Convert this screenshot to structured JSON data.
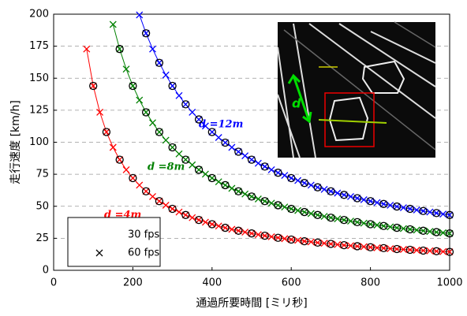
{
  "chart_data": {
    "type": "scatter",
    "xlabel": "通過所要時間 [ミリ秒]",
    "ylabel": "走行速度 [km/h]",
    "xlim": [
      0,
      1000
    ],
    "xticks": [
      0,
      200,
      400,
      600,
      800,
      1000
    ],
    "ylim": [
      0,
      200
    ],
    "yticks": [
      0,
      25,
      50,
      75,
      100,
      125,
      150,
      175,
      200
    ],
    "grid": true,
    "legend": [
      {
        "label": "30 fps",
        "marker": "circle"
      },
      {
        "label": "60 fps",
        "marker": "x"
      }
    ],
    "series": [
      {
        "label": "d =4m",
        "color": "#ff0000",
        "marker": "x",
        "x": [
          83.3,
          100,
          116.7,
          133.3,
          150,
          166.7,
          183.3,
          200,
          216.7,
          233.3,
          250,
          266.7,
          283.3,
          300,
          316.7,
          333.3,
          350,
          366.7,
          383.3,
          400,
          416.7,
          433.3,
          450,
          466.7,
          483.3,
          500,
          516.7,
          533.3,
          550,
          566.7,
          583.3,
          600,
          616.7,
          633.3,
          650,
          666.7,
          683.3,
          700,
          716.7,
          733.3,
          750,
          766.7,
          783.3,
          800,
          816.7,
          833.3,
          850,
          866.7,
          883.3,
          900,
          916.7,
          933.3,
          950,
          966.7,
          983.3,
          1000
        ],
        "values": [
          172.8,
          144,
          123.4,
          108,
          96,
          86.4,
          78.5,
          72,
          66.5,
          61.7,
          57.6,
          54,
          50.8,
          48,
          45.5,
          43.2,
          41.1,
          39.3,
          37.6,
          36,
          34.6,
          33.2,
          32,
          30.9,
          29.8,
          28.8,
          27.9,
          27,
          26.2,
          25.4,
          24.7,
          24,
          23.4,
          22.7,
          22.2,
          21.6,
          21.1,
          20.6,
          20.1,
          19.6,
          19.2,
          18.8,
          18.4,
          18,
          17.6,
          17.3,
          16.9,
          16.6,
          16.3,
          16,
          15.7,
          15.4,
          15.2,
          14.9,
          14.6,
          14.4
        ]
      },
      {
        "label": "d =8m",
        "color": "#008000",
        "marker": "x",
        "x": [
          150,
          166.7,
          183.3,
          200,
          216.7,
          233.3,
          250,
          266.7,
          283.3,
          300,
          316.7,
          333.3,
          350,
          366.7,
          383.3,
          400,
          416.7,
          433.3,
          450,
          466.7,
          483.3,
          500,
          516.7,
          533.3,
          550,
          566.7,
          583.3,
          600,
          616.7,
          633.3,
          650,
          666.7,
          683.3,
          700,
          716.7,
          733.3,
          750,
          766.7,
          783.3,
          800,
          816.7,
          833.3,
          850,
          866.7,
          883.3,
          900,
          916.7,
          933.3,
          950,
          966.7,
          983.3,
          1000
        ],
        "values": [
          192,
          172.8,
          157.1,
          144,
          132.9,
          123.4,
          115.2,
          108,
          101.6,
          96,
          90.9,
          86.4,
          82.3,
          78.5,
          75.1,
          72,
          69.1,
          66.5,
          64,
          61.7,
          59.6,
          57.6,
          55.7,
          54,
          52.4,
          50.8,
          49.4,
          48,
          46.7,
          45.5,
          44.3,
          43.2,
          42.1,
          41.1,
          40.2,
          39.3,
          38.4,
          37.6,
          36.8,
          36,
          35.3,
          34.6,
          33.9,
          33.2,
          32.6,
          32,
          31.4,
          30.9,
          30.3,
          29.8,
          29.3,
          28.8
        ]
      },
      {
        "label": "d =12m",
        "color": "#0000ff",
        "marker": "x",
        "x": [
          216.7,
          233.3,
          250,
          266.7,
          283.3,
          300,
          316.7,
          333.3,
          350,
          366.7,
          383.3,
          400,
          416.7,
          433.3,
          450,
          466.7,
          483.3,
          500,
          516.7,
          533.3,
          550,
          566.7,
          583.3,
          600,
          616.7,
          633.3,
          650,
          666.7,
          683.3,
          700,
          716.7,
          733.3,
          750,
          766.7,
          783.3,
          800,
          816.7,
          833.3,
          850,
          866.7,
          883.3,
          900,
          916.7,
          933.3,
          950,
          966.7,
          983.3,
          1000
        ],
        "values": [
          199.4,
          185.1,
          172.8,
          162,
          152.5,
          144,
          136.4,
          129.6,
          123.4,
          117.8,
          112.7,
          108,
          103.7,
          99.7,
          96,
          92.6,
          89.4,
          86.4,
          83.6,
          81,
          78.5,
          76.2,
          74.1,
          72,
          70.1,
          68.2,
          66.5,
          64.8,
          63.2,
          61.7,
          60.3,
          58.9,
          57.6,
          56.3,
          55.1,
          54,
          52.9,
          51.8,
          50.8,
          49.8,
          48.9,
          48,
          47.1,
          46.3,
          45.5,
          44.7,
          43.9,
          43.2
        ]
      },
      {
        "color": "#000000",
        "marker": "circle",
        "x": [
          100,
          133.3,
          166.7,
          200,
          233.3,
          266.7,
          300,
          333.3,
          366.7,
          400,
          433.3,
          466.7,
          500,
          533.3,
          566.7,
          600,
          633.3,
          666.7,
          700,
          733.3,
          766.7,
          800,
          833.3,
          866.7,
          900,
          933.3,
          966.7,
          1000
        ],
        "values": [
          144,
          108,
          86.4,
          72,
          61.7,
          54,
          48,
          43.2,
          39.3,
          36,
          33.2,
          30.9,
          28.8,
          27,
          25.4,
          24,
          22.7,
          21.6,
          20.6,
          19.6,
          18.8,
          18,
          17.3,
          16.6,
          16,
          15.4,
          14.9,
          14.4
        ]
      },
      {
        "color": "#000000",
        "marker": "circle",
        "x": [
          166.7,
          200,
          233.3,
          266.7,
          300,
          333.3,
          366.7,
          400,
          433.3,
          466.7,
          500,
          533.3,
          566.7,
          600,
          633.3,
          666.7,
          700,
          733.3,
          766.7,
          800,
          833.3,
          866.7,
          900,
          933.3,
          966.7,
          1000
        ],
        "values": [
          172.8,
          144,
          123.4,
          108,
          96,
          86.4,
          78.5,
          72,
          66.5,
          61.7,
          57.6,
          54,
          50.8,
          48,
          45.5,
          43.2,
          41.1,
          39.3,
          37.6,
          36,
          34.6,
          33.2,
          32,
          30.9,
          29.8,
          28.8
        ]
      },
      {
        "color": "#000000",
        "marker": "circle",
        "x": [
          233.3,
          266.7,
          300,
          333.3,
          366.7,
          400,
          433.3,
          466.7,
          500,
          533.3,
          566.7,
          600,
          633.3,
          666.7,
          700,
          733.3,
          766.7,
          800,
          833.3,
          866.7,
          900,
          933.3,
          966.7,
          1000
        ],
        "values": [
          185.1,
          162,
          144,
          129.6,
          117.8,
          108,
          99.7,
          92.6,
          86.4,
          81,
          76.2,
          72,
          68.2,
          64.8,
          61.7,
          58.9,
          56.3,
          54,
          51.8,
          49.8,
          48,
          46.3,
          44.7,
          43.2
        ]
      }
    ],
    "inset": {
      "label": "d"
    }
  }
}
